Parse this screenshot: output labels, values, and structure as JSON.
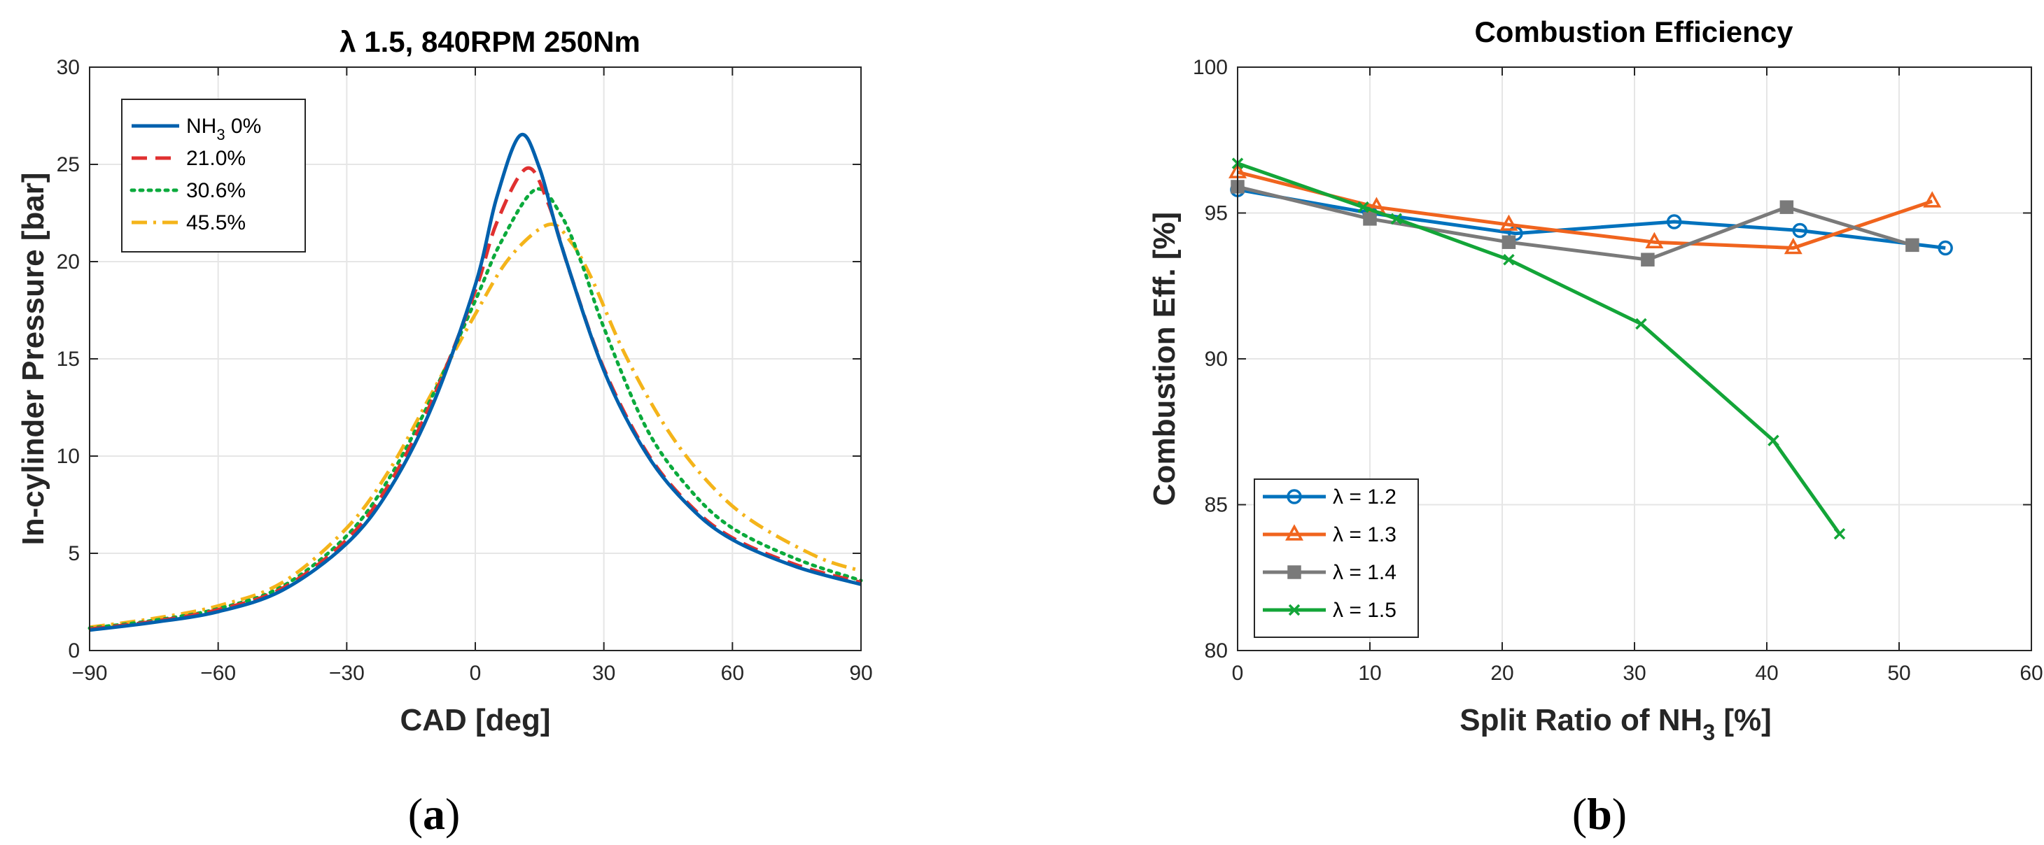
{
  "chart_data": [
    {
      "type": "line",
      "title": "λ 1.5, 840RPM 250Nm",
      "xlabel": "CAD [deg]",
      "ylabel": "In-cylinder Pressure [bar]",
      "xlim": [
        -90,
        90
      ],
      "ylim": [
        0,
        30
      ],
      "xticks": [
        "-90",
        "-60",
        "-30",
        "0",
        "30",
        "60",
        "90"
      ],
      "yticks": [
        "0",
        "5",
        "10",
        "15",
        "20",
        "25",
        "30"
      ],
      "grid": true,
      "legend_position": "top-left",
      "panel_label": "a",
      "series": [
        {
          "name": "NH3 0%",
          "legend_base": "NH",
          "legend_sub": "3",
          "legend_tail": " 0%",
          "color": "#0060AD",
          "dash": "solid",
          "peak": 26.5,
          "peak_x": 10.5,
          "x": [
            -90,
            -75,
            -60,
            -45,
            -30,
            -20,
            -10,
            0,
            5,
            10.5,
            15,
            20,
            30,
            40,
            50,
            60,
            75,
            90
          ],
          "y": [
            1.05,
            1.45,
            2.0,
            3.1,
            5.5,
            8.3,
            12.6,
            18.8,
            23.3,
            26.5,
            24.8,
            20.9,
            14.4,
            10.1,
            7.4,
            5.7,
            4.3,
            3.4
          ]
        },
        {
          "name": "21.0%",
          "color": "#E03030",
          "dash": "dashed",
          "peak": 24.8,
          "peak_x": 12,
          "x": [
            -90,
            -75,
            -60,
            -45,
            -30,
            -20,
            -10,
            0,
            5,
            12,
            17,
            22,
            30,
            40,
            50,
            60,
            75,
            90
          ],
          "y": [
            1.1,
            1.5,
            2.1,
            3.2,
            5.7,
            8.6,
            12.9,
            18.5,
            22.0,
            24.8,
            23.0,
            19.5,
            14.5,
            10.2,
            7.5,
            5.8,
            4.4,
            3.5
          ]
        },
        {
          "name": "30.6%",
          "color": "#0BAA3C",
          "dash": "dotted",
          "peak": 23.7,
          "peak_x": 14,
          "x": [
            -90,
            -75,
            -60,
            -45,
            -30,
            -20,
            -10,
            0,
            6,
            14,
            20,
            25,
            30,
            40,
            50,
            60,
            75,
            90
          ],
          "y": [
            1.15,
            1.55,
            2.15,
            3.3,
            5.9,
            8.9,
            13.1,
            18.0,
            21.0,
            23.7,
            22.4,
            19.8,
            16.6,
            11.4,
            8.3,
            6.3,
            4.7,
            3.6
          ]
        },
        {
          "name": "45.5%",
          "color": "#F4B41A",
          "dash": "dashdot",
          "peak": 21.9,
          "peak_x": 17,
          "x": [
            -90,
            -75,
            -60,
            -45,
            -30,
            -20,
            -10,
            0,
            8,
            17,
            22,
            27,
            35,
            45,
            55,
            65,
            80,
            90
          ],
          "y": [
            1.2,
            1.65,
            2.3,
            3.5,
            6.3,
            9.3,
            13.3,
            17.3,
            20.2,
            21.9,
            21.1,
            19.2,
            15.2,
            11.3,
            8.5,
            6.6,
            4.8,
            4.1
          ]
        }
      ]
    },
    {
      "type": "line",
      "title": "Combustion Efficiency",
      "xlabel_base": "Split Ratio of NH",
      "xlabel_sub": "3",
      "xlabel_tail": " [%]",
      "ylabel": "Combustion Eff. [%]",
      "xlim": [
        0,
        60
      ],
      "ylim": [
        80,
        100
      ],
      "xticks": [
        "0",
        "10",
        "20",
        "30",
        "40",
        "50",
        "60"
      ],
      "yticks": [
        "80",
        "85",
        "90",
        "95",
        "100"
      ],
      "grid": true,
      "legend_position": "bottom-left",
      "panel_label": "b",
      "series": [
        {
          "name": "λ = 1.2",
          "color": "#0072BD",
          "marker": "circle",
          "x": [
            0,
            10,
            21,
            33,
            42.5,
            53.5
          ],
          "y": [
            95.8,
            95.0,
            94.3,
            94.7,
            94.4,
            93.8
          ]
        },
        {
          "name": "λ = 1.3",
          "color": "#F0641E",
          "marker": "triangle",
          "x": [
            0,
            10.5,
            20.5,
            31.5,
            42,
            52.5
          ],
          "y": [
            96.4,
            95.2,
            94.6,
            94.0,
            93.8,
            95.4
          ]
        },
        {
          "name": "λ = 1.4",
          "color": "#7A7A7A",
          "marker": "square",
          "x": [
            0,
            10,
            20.5,
            31,
            41.5,
            51
          ],
          "y": [
            95.9,
            94.8,
            94.0,
            93.4,
            95.2,
            93.9
          ]
        },
        {
          "name": "λ = 1.5",
          "color": "#13A538",
          "marker": "x",
          "x": [
            0,
            9.5,
            12,
            20.5,
            30.5,
            40.5,
            45.5
          ],
          "y": [
            96.7,
            95.2,
            94.8,
            93.4,
            91.2,
            87.2,
            84.0
          ]
        }
      ]
    }
  ]
}
